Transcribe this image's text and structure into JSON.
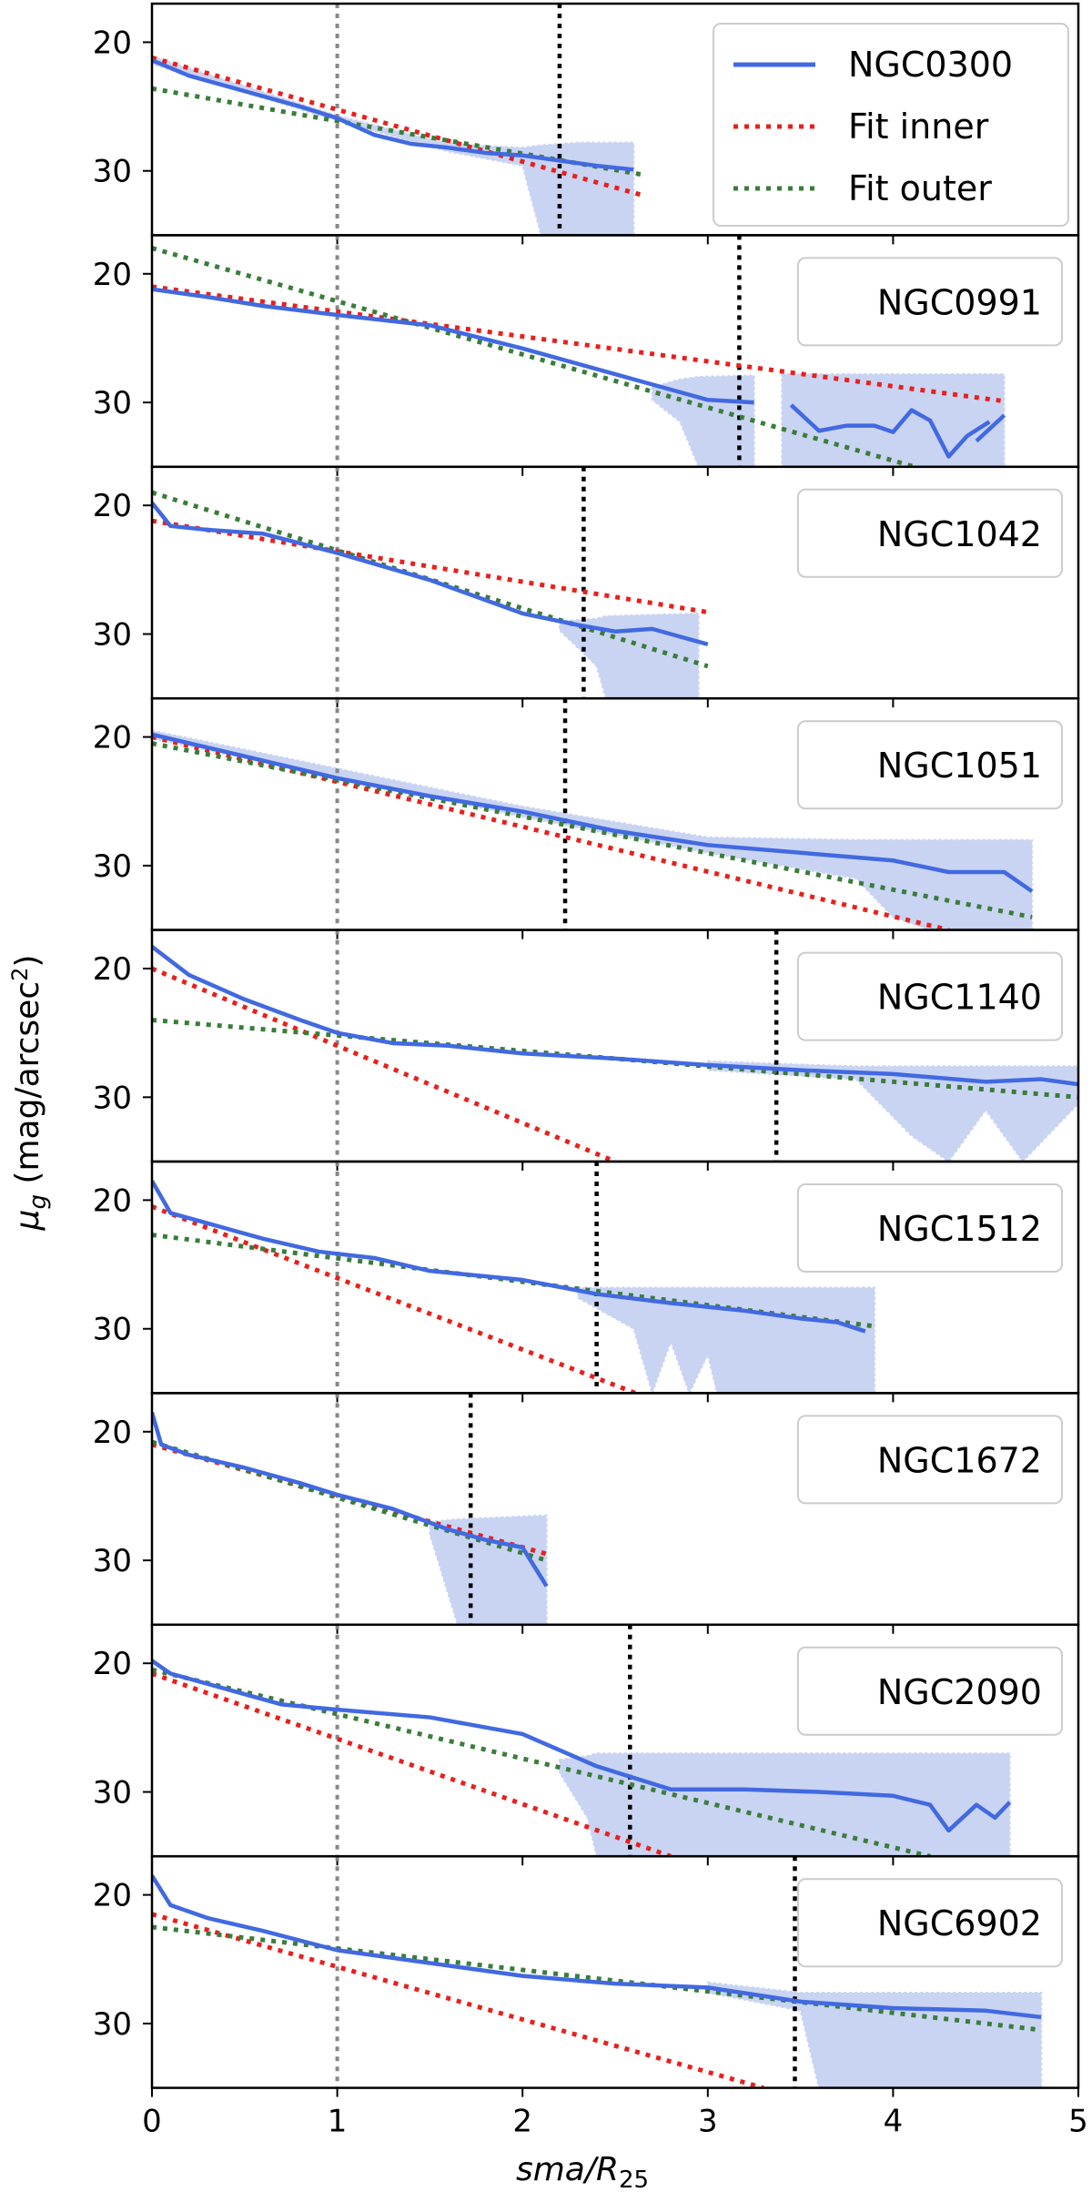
{
  "figure": {
    "ylabel_main": "μ",
    "ylabel_sub": "g",
    "ylabel_unit": " (mag/arcsec",
    "ylabel_sup": "2",
    "ylabel_close": ")",
    "xlabel_main": "sma/R",
    "xlabel_sub": "25",
    "x_ticks": [
      "0",
      "1",
      "2",
      "3",
      "4",
      "5"
    ],
    "y_ticks": [
      "20",
      "30"
    ],
    "legend_entries": [
      "NGC0300",
      "Fit inner",
      "Fit outer"
    ]
  },
  "colors": {
    "profile": "#4169E1",
    "uncertainty": "#c9d4f3",
    "fit_inner": "#e8201c",
    "fit_outer": "#3a7d3a",
    "r25_line": "#888888",
    "break_line": "#000000"
  },
  "chart_data": [
    {
      "type": "line",
      "galaxy": "NGC0300",
      "xlim": [
        0,
        5
      ],
      "ylim": [
        35,
        17
      ],
      "r25": 1.0,
      "break": 2.2,
      "xmax": 2.65,
      "profile": [
        [
          0,
          21.4
        ],
        [
          0.2,
          22.6
        ],
        [
          0.5,
          23.8
        ],
        [
          0.8,
          25.0
        ],
        [
          1.0,
          25.9
        ],
        [
          1.2,
          27.2
        ],
        [
          1.4,
          27.9
        ],
        [
          1.6,
          28.2
        ],
        [
          1.8,
          28.6
        ],
        [
          2.0,
          28.8
        ],
        [
          2.2,
          29.2
        ],
        [
          2.4,
          29.6
        ],
        [
          2.6,
          29.9
        ]
      ],
      "band": [
        [
          0,
          21.1,
          21.7
        ],
        [
          1.0,
          25.7,
          26.1
        ],
        [
          1.6,
          27.9,
          28.5
        ],
        [
          2.0,
          28.2,
          29.6
        ],
        [
          2.1,
          28.0,
          35
        ],
        [
          2.3,
          27.8,
          35
        ],
        [
          2.6,
          27.8,
          35
        ]
      ],
      "fit_inner": [
        [
          0,
          21.2
        ],
        [
          2.65,
          31.9
        ]
      ],
      "fit_outer": [
        [
          0,
          23.6
        ],
        [
          2.65,
          30.3
        ]
      ],
      "legend": true
    },
    {
      "type": "line",
      "galaxy": "NGC0991",
      "xlim": [
        0,
        5
      ],
      "ylim": [
        35,
        17
      ],
      "r25": 1.0,
      "break": 3.17,
      "xmax": 4.6,
      "profile": [
        [
          0,
          21.2
        ],
        [
          0.3,
          21.8
        ],
        [
          0.6,
          22.5
        ],
        [
          1.0,
          23.2
        ],
        [
          1.5,
          24.0
        ],
        [
          2.0,
          25.8
        ],
        [
          2.5,
          27.8
        ],
        [
          2.8,
          29.0
        ],
        [
          3.0,
          29.8
        ],
        [
          3.25,
          30.0
        ],
        null,
        [
          3.45,
          30.2
        ],
        [
          3.6,
          32.2
        ],
        [
          3.75,
          31.8
        ],
        [
          3.9,
          31.8
        ],
        [
          4.0,
          32.3
        ],
        [
          4.1,
          30.6
        ],
        [
          4.2,
          31.4
        ],
        [
          4.3,
          34.2
        ],
        [
          4.4,
          32.6
        ],
        [
          4.52,
          31.5
        ],
        null,
        [
          4.45,
          33.0
        ],
        [
          4.6,
          31.0
        ]
      ],
      "band": [
        [
          2.7,
          28.8,
          29.8
        ],
        [
          2.85,
          28.2,
          31.5
        ],
        [
          2.95,
          28.0,
          35
        ],
        [
          3.25,
          27.9,
          35
        ],
        null,
        [
          3.4,
          27.8,
          35
        ],
        [
          4.6,
          27.8,
          35
        ]
      ],
      "fit_inner": [
        [
          0,
          21.0
        ],
        [
          4.6,
          29.9
        ]
      ],
      "fit_outer": [
        [
          0,
          18.0
        ],
        [
          4.6,
          37.0
        ]
      ],
      "legend": false
    },
    {
      "type": "line",
      "galaxy": "NGC1042",
      "xlim": [
        0,
        5
      ],
      "ylim": [
        35,
        17
      ],
      "r25": 1.0,
      "break": 2.33,
      "xmax": 3.0,
      "profile": [
        [
          0,
          19.8
        ],
        [
          0.1,
          21.6
        ],
        [
          0.3,
          21.9
        ],
        [
          0.6,
          22.2
        ],
        [
          1.0,
          23.7
        ],
        [
          1.5,
          25.8
        ],
        [
          2.0,
          28.4
        ],
        [
          2.3,
          29.3
        ],
        [
          2.5,
          29.8
        ],
        [
          2.7,
          29.6
        ],
        [
          2.85,
          30.2
        ],
        [
          3.0,
          30.8
        ]
      ],
      "band": [
        [
          2.2,
          29.0,
          29.7
        ],
        [
          2.4,
          28.8,
          32.5
        ],
        [
          2.45,
          28.6,
          35
        ],
        [
          2.95,
          28.4,
          35
        ]
      ],
      "fit_inner": [
        [
          0,
          21.2
        ],
        [
          3.0,
          28.3
        ]
      ],
      "fit_outer": [
        [
          0,
          19.0
        ],
        [
          3.0,
          32.5
        ]
      ],
      "legend": false
    },
    {
      "type": "line",
      "galaxy": "NGC1051",
      "xlim": [
        0,
        5
      ],
      "ylim": [
        35,
        17
      ],
      "r25": 1.0,
      "break": 2.23,
      "xmax": 4.75,
      "profile": [
        [
          0,
          19.8
        ],
        [
          0.5,
          21.5
        ],
        [
          1.0,
          23.2
        ],
        [
          1.5,
          24.6
        ],
        [
          2.0,
          25.8
        ],
        [
          2.5,
          27.3
        ],
        [
          3.0,
          28.4
        ],
        [
          3.5,
          29.0
        ],
        [
          4.0,
          29.6
        ],
        [
          4.3,
          30.5
        ],
        [
          4.6,
          30.5
        ],
        [
          4.75,
          32.0
        ]
      ],
      "band": [
        [
          0,
          19.5,
          20.1
        ],
        [
          2.0,
          25.4,
          26.2
        ],
        [
          3.0,
          27.8,
          29.0
        ],
        [
          3.8,
          28.0,
          31.0
        ],
        [
          4.0,
          28.0,
          34.0
        ],
        [
          4.2,
          28.0,
          35
        ],
        [
          4.75,
          28.0,
          35
        ]
      ],
      "fit_inner": [
        [
          0,
          20.0
        ],
        [
          4.3,
          35.0
        ]
      ],
      "fit_outer": [
        [
          0,
          20.5
        ],
        [
          4.75,
          34.0
        ]
      ],
      "legend": false
    },
    {
      "type": "line",
      "galaxy": "NGC1140",
      "xlim": [
        0,
        5
      ],
      "ylim": [
        35,
        17
      ],
      "r25": 1.0,
      "break": 3.37,
      "xmax": 5.0,
      "profile": [
        [
          0,
          18.3
        ],
        [
          0.2,
          20.5
        ],
        [
          0.5,
          22.4
        ],
        [
          0.8,
          24.0
        ],
        [
          1.0,
          25.0
        ],
        [
          1.3,
          25.8
        ],
        [
          1.6,
          26.0
        ],
        [
          2.0,
          26.6
        ],
        [
          2.5,
          27.0
        ],
        [
          3.0,
          27.5
        ],
        [
          3.5,
          27.9
        ],
        [
          4.0,
          28.2
        ],
        [
          4.5,
          28.8
        ],
        [
          4.8,
          28.6
        ],
        [
          5.0,
          29.0
        ]
      ],
      "band": [
        [
          3.0,
          27.2,
          27.9
        ],
        [
          3.8,
          27.6,
          28.6
        ],
        [
          4.1,
          27.6,
          33.0
        ],
        [
          4.3,
          27.6,
          35
        ],
        [
          4.5,
          27.6,
          31.0
        ],
        [
          4.7,
          27.6,
          35
        ],
        [
          5.0,
          27.6,
          30.5
        ]
      ],
      "fit_inner": [
        [
          0,
          20.0
        ],
        [
          2.5,
          35.0
        ]
      ],
      "fit_outer": [
        [
          0,
          24.0
        ],
        [
          5.0,
          30.0
        ]
      ],
      "legend": false
    },
    {
      "type": "line",
      "galaxy": "NGC1512",
      "xlim": [
        0,
        5
      ],
      "ylim": [
        35,
        17
      ],
      "r25": 1.0,
      "break": 2.4,
      "xmax": 3.9,
      "profile": [
        [
          0,
          18.5
        ],
        [
          0.1,
          21.0
        ],
        [
          0.3,
          21.8
        ],
        [
          0.6,
          23.0
        ],
        [
          0.9,
          24.0
        ],
        [
          1.2,
          24.5
        ],
        [
          1.5,
          25.5
        ],
        [
          2.0,
          26.2
        ],
        [
          2.4,
          27.3
        ],
        [
          2.8,
          28.0
        ],
        [
          3.2,
          28.6
        ],
        [
          3.5,
          29.2
        ],
        [
          3.7,
          29.5
        ],
        [
          3.85,
          30.2
        ]
      ],
      "band": [
        [
          2.3,
          26.8,
          27.6
        ],
        [
          2.6,
          26.8,
          30.0
        ],
        [
          2.7,
          26.8,
          35
        ],
        [
          2.8,
          26.8,
          31.0
        ],
        [
          2.9,
          26.8,
          35
        ],
        [
          3.0,
          26.8,
          32.0
        ],
        [
          3.05,
          26.8,
          35
        ],
        [
          3.9,
          26.8,
          35
        ]
      ],
      "fit_inner": [
        [
          0,
          20.5
        ],
        [
          2.7,
          35.5
        ]
      ],
      "fit_outer": [
        [
          0,
          22.7
        ],
        [
          3.9,
          29.8
        ]
      ],
      "legend": false
    },
    {
      "type": "line",
      "galaxy": "NGC1672",
      "xlim": [
        0,
        5
      ],
      "ylim": [
        35,
        17
      ],
      "r25": 1.0,
      "break": 1.72,
      "xmax": 2.13,
      "profile": [
        [
          0,
          18.5
        ],
        [
          0.05,
          21.0
        ],
        [
          0.2,
          21.8
        ],
        [
          0.5,
          22.8
        ],
        [
          0.8,
          24.0
        ],
        [
          1.0,
          24.9
        ],
        [
          1.3,
          26.0
        ],
        [
          1.6,
          27.6
        ],
        [
          1.8,
          28.4
        ],
        [
          2.0,
          29.0
        ],
        [
          2.13,
          32.0
        ]
      ],
      "band": [
        [
          1.5,
          27.0,
          28.0
        ],
        [
          1.65,
          26.8,
          35
        ],
        [
          2.13,
          26.5,
          35
        ]
      ],
      "fit_inner": [
        [
          0,
          21.0
        ],
        [
          2.13,
          29.5
        ]
      ],
      "fit_outer": [
        [
          0,
          20.8
        ],
        [
          2.13,
          30.0
        ]
      ],
      "legend": false
    },
    {
      "type": "line",
      "galaxy": "NGC2090",
      "xlim": [
        0,
        5
      ],
      "ylim": [
        35,
        17
      ],
      "r25": 1.0,
      "break": 2.58,
      "xmax": 4.63,
      "profile": [
        [
          0,
          19.8
        ],
        [
          0.1,
          20.8
        ],
        [
          0.4,
          22.0
        ],
        [
          0.7,
          23.2
        ],
        [
          1.0,
          23.6
        ],
        [
          1.5,
          24.2
        ],
        [
          2.0,
          25.5
        ],
        [
          2.4,
          28.0
        ],
        [
          2.8,
          29.8
        ],
        [
          3.2,
          29.8
        ],
        [
          3.6,
          30.0
        ],
        [
          4.0,
          30.3
        ],
        [
          4.2,
          31.0
        ],
        [
          4.3,
          33.0
        ],
        [
          4.45,
          31.0
        ],
        [
          4.55,
          32.0
        ],
        [
          4.63,
          30.8
        ]
      ],
      "band": [
        [
          2.2,
          27.5,
          28.5
        ],
        [
          2.35,
          27.2,
          32.0
        ],
        [
          2.4,
          27.0,
          35
        ],
        [
          4.63,
          27.0,
          35
        ]
      ],
      "fit_inner": [
        [
          0,
          20.8
        ],
        [
          2.8,
          35.0
        ]
      ],
      "fit_outer": [
        [
          0,
          20.5
        ],
        [
          4.2,
          35.0
        ]
      ],
      "legend": false
    },
    {
      "type": "line",
      "galaxy": "NGC6902",
      "xlim": [
        0,
        5
      ],
      "ylim": [
        35,
        17
      ],
      "r25": 1.0,
      "break": 3.47,
      "xmax": 4.8,
      "profile": [
        [
          0,
          18.5
        ],
        [
          0.1,
          20.8
        ],
        [
          0.3,
          21.8
        ],
        [
          0.6,
          22.8
        ],
        [
          1.0,
          24.3
        ],
        [
          1.5,
          25.3
        ],
        [
          2.0,
          26.3
        ],
        [
          2.5,
          26.9
        ],
        [
          3.0,
          27.2
        ],
        [
          3.5,
          28.3
        ],
        [
          4.0,
          28.8
        ],
        [
          4.5,
          29.0
        ],
        [
          4.8,
          29.5
        ]
      ],
      "band": [
        [
          3.0,
          26.8,
          27.6
        ],
        [
          3.5,
          27.6,
          29.0
        ],
        [
          3.6,
          27.6,
          35
        ],
        [
          4.8,
          27.6,
          35
        ]
      ],
      "fit_inner": [
        [
          0,
          21.5
        ],
        [
          3.3,
          35.0
        ]
      ],
      "fit_outer": [
        [
          0,
          22.5
        ],
        [
          4.8,
          30.5
        ]
      ],
      "legend": false
    }
  ]
}
